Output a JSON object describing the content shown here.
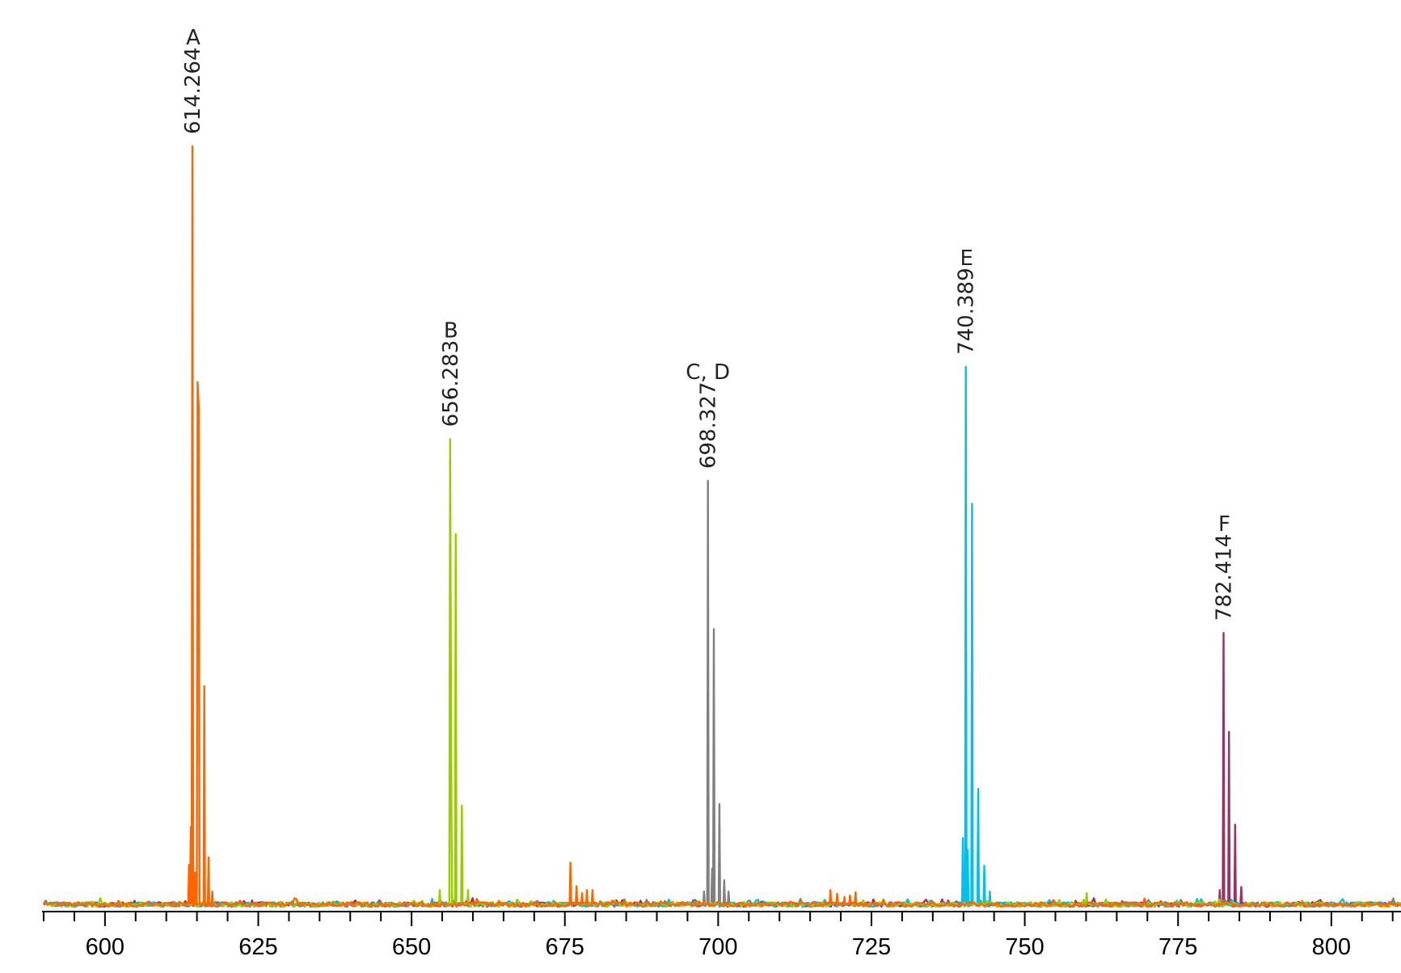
{
  "chart_data": {
    "type": "line",
    "xlim": [
      590,
      812
    ],
    "ylim": [
      0,
      1.0
    ],
    "xticks_major": [
      600,
      625,
      650,
      675,
      700,
      725,
      750,
      775,
      800
    ],
    "xticks_minor_step": 5,
    "grid": false,
    "series": [
      {
        "color": "#ff6600",
        "peaks": [
          {
            "x": 614.264,
            "y": 1.0
          },
          {
            "x": 614.0,
            "y": 0.105
          },
          {
            "x": 613.7,
            "y": 0.055
          },
          {
            "x": 614.7,
            "y": 0.045
          },
          {
            "x": 615.1,
            "y": 0.69
          },
          {
            "x": 615.3,
            "y": 0.655
          },
          {
            "x": 616.2,
            "y": 0.29
          },
          {
            "x": 616.9,
            "y": 0.065
          },
          {
            "x": 617.5,
            "y": 0.02
          },
          {
            "x": 675.9,
            "y": 0.058
          },
          {
            "x": 676.9,
            "y": 0.027
          },
          {
            "x": 677.8,
            "y": 0.018
          },
          {
            "x": 678.6,
            "y": 0.022
          },
          {
            "x": 679.5,
            "y": 0.022
          },
          {
            "x": 718.3,
            "y": 0.022
          },
          {
            "x": 719.4,
            "y": 0.017
          },
          {
            "x": 720.6,
            "y": 0.013
          },
          {
            "x": 721.5,
            "y": 0.015
          },
          {
            "x": 722.4,
            "y": 0.019
          }
        ]
      },
      {
        "color": "#99cc00",
        "peaks": [
          {
            "x": 654.6,
            "y": 0.022
          },
          {
            "x": 656.283,
            "y": 0.615
          },
          {
            "x": 656.5,
            "y": 0.125
          },
          {
            "x": 657.2,
            "y": 0.49
          },
          {
            "x": 658.2,
            "y": 0.133
          },
          {
            "x": 659.2,
            "y": 0.022
          },
          {
            "x": 760.1,
            "y": 0.018
          }
        ]
      },
      {
        "color": "#808080",
        "peaks": [
          {
            "x": 697.7,
            "y": 0.02
          },
          {
            "x": 698.327,
            "y": 0.56
          },
          {
            "x": 699.0,
            "y": 0.05
          },
          {
            "x": 699.3,
            "y": 0.365
          },
          {
            "x": 700.2,
            "y": 0.135
          },
          {
            "x": 701.0,
            "y": 0.035
          },
          {
            "x": 701.7,
            "y": 0.02
          }
        ]
      },
      {
        "color": "#00c0f0",
        "peaks": [
          {
            "x": 739.9,
            "y": 0.09
          },
          {
            "x": 740.389,
            "y": 0.71
          },
          {
            "x": 740.7,
            "y": 0.075
          },
          {
            "x": 741.4,
            "y": 0.53
          },
          {
            "x": 742.4,
            "y": 0.155
          },
          {
            "x": 743.4,
            "y": 0.054
          },
          {
            "x": 744.3,
            "y": 0.02
          }
        ]
      },
      {
        "color": "#993366",
        "peaks": [
          {
            "x": 781.8,
            "y": 0.022
          },
          {
            "x": 782.414,
            "y": 0.36
          },
          {
            "x": 783.3,
            "y": 0.23
          },
          {
            "x": 784.3,
            "y": 0.108
          },
          {
            "x": 785.3,
            "y": 0.026
          }
        ]
      }
    ],
    "annotations": [
      {
        "letter": "A",
        "value": "614.264",
        "x": 614.264,
        "y": 1.0
      },
      {
        "letter": "B",
        "value": "656.283",
        "x": 656.283,
        "y": 0.615
      },
      {
        "letter": "C, D",
        "value": "698.327",
        "x": 698.327,
        "y": 0.56
      },
      {
        "letter": "E",
        "value": "740.389",
        "x": 740.389,
        "y": 0.71
      },
      {
        "letter": "F",
        "value": "782.414",
        "x": 782.414,
        "y": 0.36
      }
    ]
  }
}
